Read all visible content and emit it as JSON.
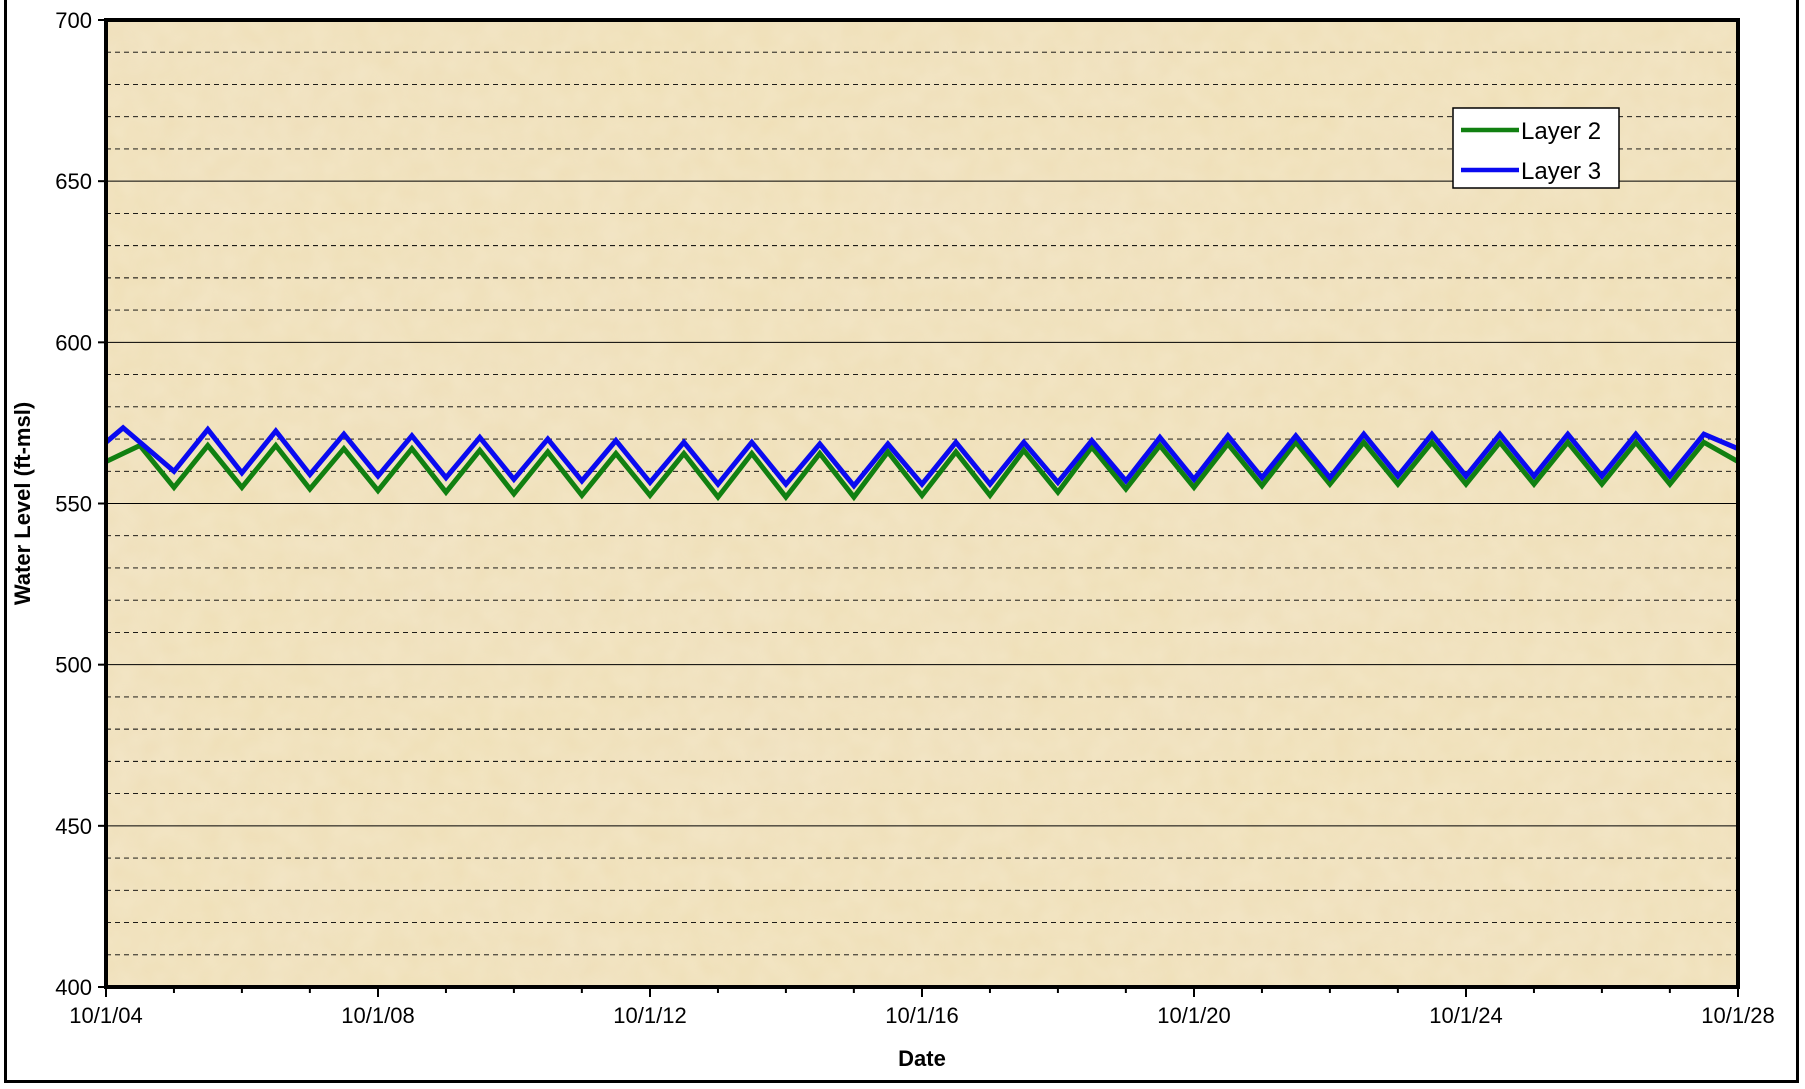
{
  "chart_data": {
    "type": "line",
    "title": "",
    "xlabel": "Date",
    "ylabel": "Water Level (ft-msl)",
    "x_range": [
      "2004-10-01",
      "2028-10-01"
    ],
    "ylim": [
      400,
      700
    ],
    "y_major_ticks": [
      400,
      450,
      500,
      550,
      600,
      650,
      700
    ],
    "y_minor_step": 10,
    "x_tick_labels": [
      "10/1/04",
      "10/1/08",
      "10/1/12",
      "10/1/16",
      "10/1/20",
      "10/1/24",
      "10/1/28"
    ],
    "x_tick_dates": [
      "2004-10-01",
      "2008-10-01",
      "2012-10-01",
      "2016-10-01",
      "2020-10-01",
      "2024-10-01",
      "2028-10-01"
    ],
    "grid": "horizontal (solid major, dashed minor)",
    "legend_position": "top-right",
    "series": [
      {
        "name": "Layer 2",
        "color": "#118011",
        "points": [
          [
            "2004-10-01",
            563
          ],
          [
            "2005-04-01",
            568
          ],
          [
            "2005-10-01",
            555
          ],
          [
            "2006-04-01",
            568
          ],
          [
            "2006-10-01",
            555
          ],
          [
            "2007-04-01",
            568
          ],
          [
            "2007-10-01",
            554.5
          ],
          [
            "2008-04-01",
            567
          ],
          [
            "2008-10-01",
            554
          ],
          [
            "2009-04-01",
            567
          ],
          [
            "2009-10-01",
            553.5
          ],
          [
            "2010-04-01",
            566.5
          ],
          [
            "2010-10-01",
            553
          ],
          [
            "2011-04-01",
            566
          ],
          [
            "2011-10-01",
            552.5
          ],
          [
            "2012-04-01",
            565.5
          ],
          [
            "2012-10-01",
            552.5
          ],
          [
            "2013-04-01",
            565.5
          ],
          [
            "2013-10-01",
            552
          ],
          [
            "2014-04-01",
            565.5
          ],
          [
            "2014-10-01",
            552
          ],
          [
            "2015-04-01",
            565.5
          ],
          [
            "2015-10-01",
            552
          ],
          [
            "2016-04-01",
            566
          ],
          [
            "2016-10-01",
            552.5
          ],
          [
            "2017-04-01",
            566
          ],
          [
            "2017-10-01",
            552.5
          ],
          [
            "2018-04-01",
            566.5
          ],
          [
            "2018-10-01",
            553.5
          ],
          [
            "2019-04-01",
            567.5
          ],
          [
            "2019-10-01",
            554.5
          ],
          [
            "2020-04-01",
            568
          ],
          [
            "2020-10-01",
            555
          ],
          [
            "2021-04-01",
            568.5
          ],
          [
            "2021-10-01",
            555.5
          ],
          [
            "2022-04-01",
            569
          ],
          [
            "2022-10-01",
            556
          ],
          [
            "2023-04-01",
            569
          ],
          [
            "2023-10-01",
            556
          ],
          [
            "2024-04-01",
            569
          ],
          [
            "2024-10-01",
            556
          ],
          [
            "2025-04-01",
            569
          ],
          [
            "2025-10-01",
            556
          ],
          [
            "2026-04-01",
            569
          ],
          [
            "2026-10-01",
            556
          ],
          [
            "2027-04-01",
            569
          ],
          [
            "2027-10-01",
            556
          ],
          [
            "2028-04-01",
            569
          ],
          [
            "2028-10-01",
            563
          ]
        ]
      },
      {
        "name": "Layer 3",
        "color": "#0a0af0",
        "points": [
          [
            "2004-10-01",
            569
          ],
          [
            "2005-01-01",
            573.5
          ],
          [
            "2005-10-01",
            560
          ],
          [
            "2006-04-01",
            573
          ],
          [
            "2006-10-01",
            559.5
          ],
          [
            "2007-04-01",
            572.5
          ],
          [
            "2007-10-01",
            559
          ],
          [
            "2008-04-01",
            571.5
          ],
          [
            "2008-10-01",
            558.5
          ],
          [
            "2009-04-01",
            571
          ],
          [
            "2009-10-01",
            558
          ],
          [
            "2010-04-01",
            570.5
          ],
          [
            "2010-10-01",
            557.5
          ],
          [
            "2011-04-01",
            570
          ],
          [
            "2011-10-01",
            557
          ],
          [
            "2012-04-01",
            569.5
          ],
          [
            "2012-10-01",
            556.5
          ],
          [
            "2013-04-01",
            569
          ],
          [
            "2013-10-01",
            556
          ],
          [
            "2014-04-01",
            569
          ],
          [
            "2014-10-01",
            556
          ],
          [
            "2015-04-01",
            568.5
          ],
          [
            "2015-10-01",
            555.5
          ],
          [
            "2016-04-01",
            568.5
          ],
          [
            "2016-10-01",
            556
          ],
          [
            "2017-04-01",
            569
          ],
          [
            "2017-10-01",
            556
          ],
          [
            "2018-04-01",
            569
          ],
          [
            "2018-10-01",
            556.5
          ],
          [
            "2019-04-01",
            569.5
          ],
          [
            "2019-10-01",
            557
          ],
          [
            "2020-04-01",
            570.5
          ],
          [
            "2020-10-01",
            557.5
          ],
          [
            "2021-04-01",
            571
          ],
          [
            "2021-10-01",
            558
          ],
          [
            "2022-04-01",
            571
          ],
          [
            "2022-10-01",
            558
          ],
          [
            "2023-04-01",
            571.5
          ],
          [
            "2023-10-01",
            558.5
          ],
          [
            "2024-04-01",
            571.5
          ],
          [
            "2024-10-01",
            558.5
          ],
          [
            "2025-04-01",
            571.5
          ],
          [
            "2025-10-01",
            558.5
          ],
          [
            "2026-04-01",
            571.5
          ],
          [
            "2026-10-01",
            558.5
          ],
          [
            "2027-04-01",
            571.5
          ],
          [
            "2027-10-01",
            558.5
          ],
          [
            "2028-04-01",
            571.5
          ],
          [
            "2028-10-01",
            567
          ]
        ]
      }
    ]
  }
}
